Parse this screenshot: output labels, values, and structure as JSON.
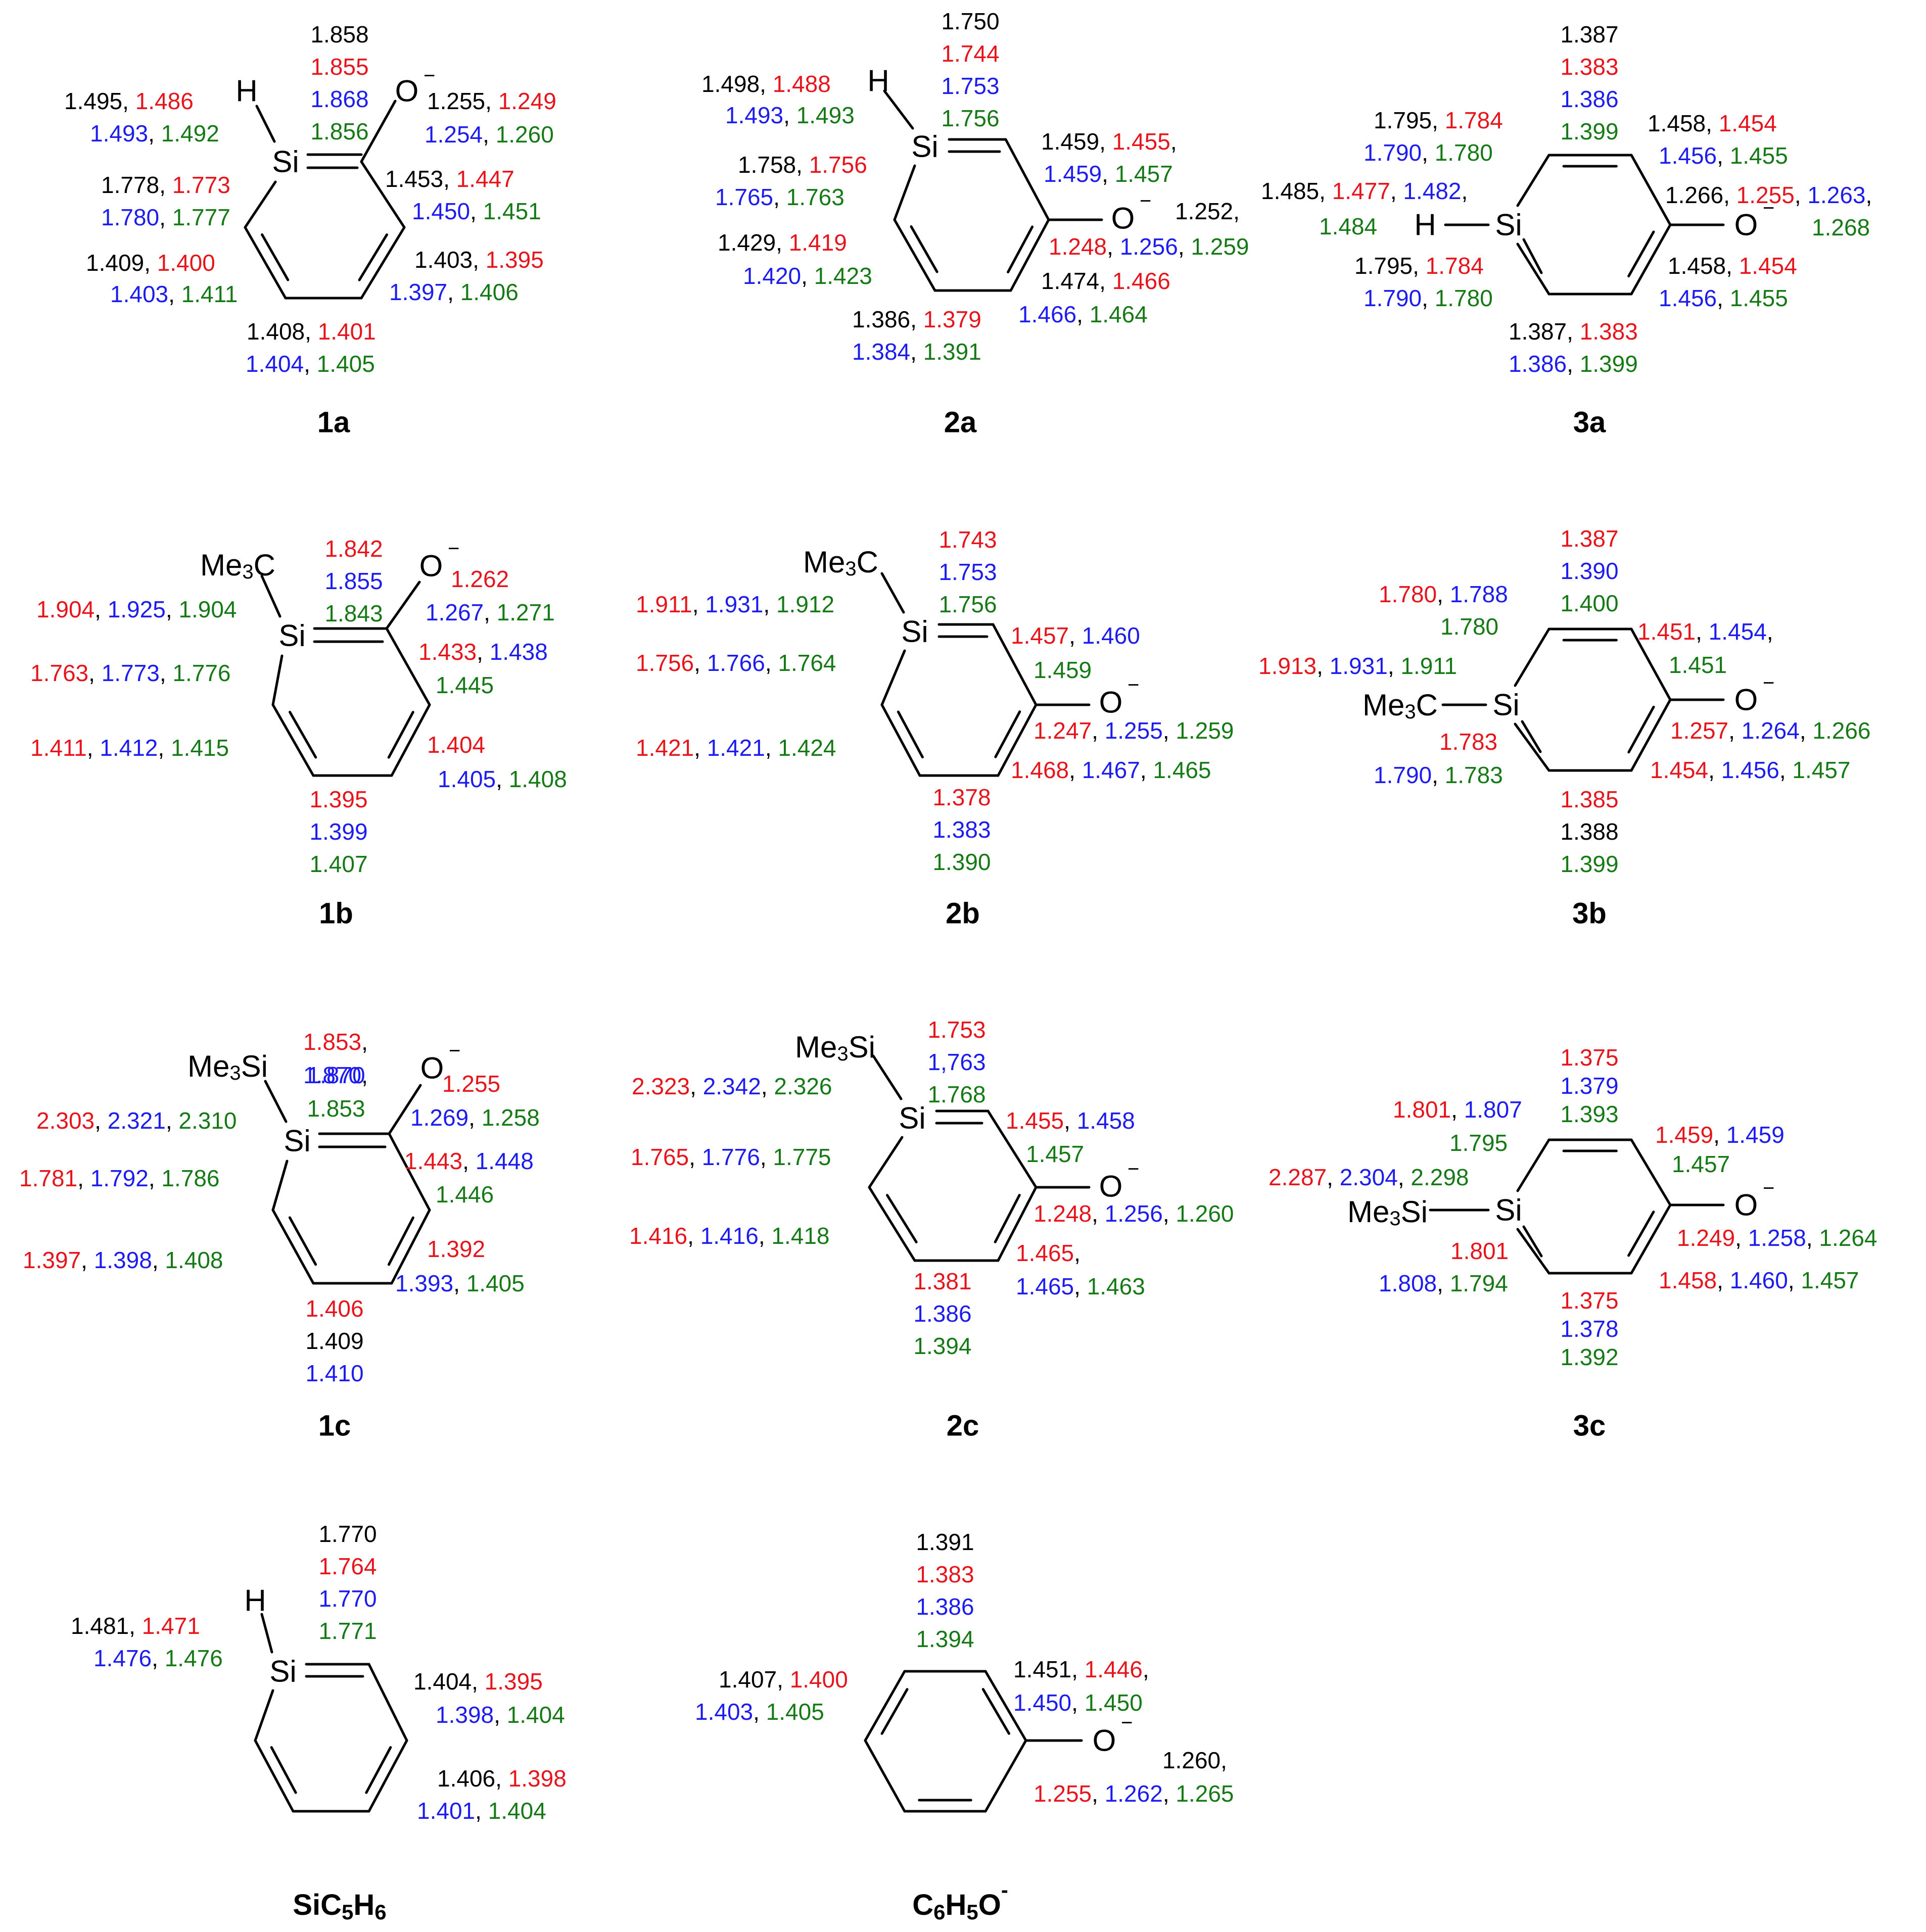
{
  "colors": {
    "black": "#000000",
    "red": "#e8141c",
    "blue": "#1c1cf0",
    "green": "#157a15"
  },
  "charge": "−",
  "structures": {
    "1a": {
      "label": "1a",
      "atoms": {
        "si": "Si",
        "h": "H",
        "o": "O"
      },
      "si_c2": [
        "1.858",
        "1.855",
        "1.868",
        "1.856"
      ],
      "si_h_line1": [
        "1.495",
        "1.486"
      ],
      "si_h_line2": [
        "1.493",
        "1.492"
      ],
      "co_line1": [
        "1.255",
        "1.249"
      ],
      "co_line2": [
        "1.254",
        "1.260"
      ],
      "si_c6_line1": [
        "1.778",
        "1.773"
      ],
      "si_c6_line2": [
        "1.780",
        "1.777"
      ],
      "c2_c3_line1": [
        "1.453",
        "1.447"
      ],
      "c2_c3_line2": [
        "1.450",
        "1.451"
      ],
      "c5_c6_line1": [
        "1.409",
        "1.400"
      ],
      "c5_c6_line2": [
        "1.403",
        "1.411"
      ],
      "c3_c4_line1": [
        "1.403",
        "1.395"
      ],
      "c3_c4_line2": [
        "1.397",
        "1.406"
      ],
      "c4_c5_line1": [
        "1.408",
        "1.401"
      ],
      "c4_c5_line2": [
        "1.404",
        "1.405"
      ]
    },
    "2a": {
      "label": "2a",
      "atoms": {
        "si": "Si",
        "h": "H",
        "o": "O"
      },
      "si_c2": [
        "1.750",
        "1.744",
        "1.753",
        "1.756"
      ],
      "si_h_line1": [
        "1.498",
        "1.488"
      ],
      "si_h_line2": [
        "1.493",
        "1.493"
      ],
      "si_c6_line1": [
        "1.758",
        "1.756"
      ],
      "si_c6_line2": [
        "1.765",
        "1.763"
      ],
      "c6_c5_line1": [
        "1.429",
        "1.419"
      ],
      "c6_c5_line2": [
        "1.420",
        "1.423"
      ],
      "c2_c3_line1": [
        "1.459",
        "1.455"
      ],
      "c2_c3_line2": [
        "1.459",
        "1.457"
      ],
      "co_line1": [
        "1.252"
      ],
      "co_line2": [
        "1.248",
        "1.256",
        "1.259"
      ],
      "c3_c4_line1": [
        "1.474",
        "1.466"
      ],
      "c3_c4_line2": [
        "1.466",
        "1.464"
      ],
      "c4_c5_line1": [
        "1.386",
        "1.379"
      ],
      "c4_c5_line2": [
        "1.384",
        "1.391"
      ]
    },
    "3a": {
      "label": "3a",
      "atoms": {
        "si": "Si",
        "h": "H",
        "o": "O"
      },
      "top_c": [
        "1.387",
        "1.383",
        "1.386",
        "1.399"
      ],
      "si_c_top_line1": [
        "1.795",
        "1.784"
      ],
      "si_c_top_line2": [
        "1.790",
        "1.780"
      ],
      "si_h_line1": [
        "1.485",
        "1.477",
        "1.482"
      ],
      "si_h_line2": [
        "1.484"
      ],
      "si_c_bot_line1": [
        "1.795",
        "1.784"
      ],
      "si_c_bot_line2": [
        "1.790",
        "1.780"
      ],
      "c_top_right_line1": [
        "1.458",
        "1.454"
      ],
      "c_top_right_line2": [
        "1.456",
        "1.455"
      ],
      "co_line1": [
        "1.266",
        "1.255",
        "1.263"
      ],
      "co_line2": [
        "1.268"
      ],
      "c_bot_right_line1": [
        "1.458",
        "1.454"
      ],
      "c_bot_right_line2": [
        "1.456",
        "1.455"
      ],
      "bot_c_line1": [
        "1.387",
        "1.383"
      ],
      "bot_c_line2": [
        "1.386",
        "1.399"
      ]
    },
    "1b": {
      "label": "1b",
      "atoms": {
        "si": "Si",
        "o": "O",
        "sub": "Me",
        "sub_tail": "C",
        "sub_index": "3"
      },
      "si_c2": [
        "1.842",
        "1.855",
        "1.843"
      ],
      "co_line1": [
        "1.262"
      ],
      "co_line2": [
        "1.267",
        "1.271"
      ],
      "si_sub": [
        "1.904",
        "1.925",
        "1.904"
      ],
      "c2_c3_line1": [
        "1.433",
        "1.438"
      ],
      "c2_c3_line2": [
        "1.445"
      ],
      "si_c6": [
        "1.763",
        "1.773",
        "1.776"
      ],
      "c5_c6": [
        "1.411",
        "1.412",
        "1.415"
      ],
      "c3_c4_line1": [
        "1.404"
      ],
      "c3_c4_line2": [
        "1.405",
        "1.408"
      ],
      "c4_c5": [
        "1.395",
        "1.399",
        "1.407"
      ]
    },
    "2b": {
      "label": "2b",
      "atoms": {
        "si": "Si",
        "o": "O",
        "sub": "Me",
        "sub_tail": "C",
        "sub_index": "3"
      },
      "si_c2": [
        "1.743",
        "1.753",
        "1.756"
      ],
      "si_sub": [
        "1.911",
        "1.931",
        "1.912"
      ],
      "si_c6": [
        "1.756",
        "1.766",
        "1.764"
      ],
      "c6_c5": [
        "1.421",
        "1.421",
        "1.424"
      ],
      "c2_c3_line1": [
        "1.457",
        "1.460"
      ],
      "c2_c3_line2": [
        "1.459"
      ],
      "co": [
        "1.247",
        "1.255",
        "1.259"
      ],
      "c3_c4": [
        "1.468",
        "1.467",
        "1.465"
      ],
      "c4_c5": [
        "1.378",
        "1.383",
        "1.390"
      ]
    },
    "3b": {
      "label": "3b",
      "atoms": {
        "si": "Si",
        "o": "O",
        "sub": "Me",
        "sub_tail": "C",
        "sub_index": "3"
      },
      "top_c": [
        "1.387",
        "1.390",
        "1.400"
      ],
      "si_c_top_line1": [
        "1.780",
        "1.788"
      ],
      "si_c_top_line2": [
        "1.780"
      ],
      "si_sub": [
        "1.913",
        "1.931",
        "1.911"
      ],
      "si_c_bot_line1": [
        "1.783"
      ],
      "si_c_bot_line2": [
        "1.790",
        "1.783"
      ],
      "c_top_right_line1": [
        "1.451",
        "1.454"
      ],
      "c_top_right_line2": [
        "1.451"
      ],
      "co": [
        "1.257",
        "1.264",
        "1.266"
      ],
      "c_bot_right": [
        "1.454",
        "1.456",
        "1.457"
      ],
      "bot_c": [
        "1.385",
        "1.388",
        "1.399"
      ]
    },
    "1c": {
      "label": "1c",
      "atoms": {
        "si": "Si",
        "o": "O",
        "sub": "Me",
        "sub_tail": "Si",
        "sub_index": "3"
      },
      "si_c2": [
        "1.853",
        "1.870",
        "1.853"
      ],
      "co_line1": [
        "1.255"
      ],
      "co_line2": [
        "1.269",
        "1.258"
      ],
      "si_sub": [
        "2.303",
        "2.321",
        "2.310"
      ],
      "c2_c3_line1": [
        "1.443",
        "1.448"
      ],
      "c2_c3_line2": [
        "1.446"
      ],
      "si_c6": [
        "1.781",
        "1.792",
        "1.786"
      ],
      "c5_c6": [
        "1.397",
        "1.398",
        "1.408"
      ],
      "c3_c4_line1": [
        "1.392"
      ],
      "c3_c4_line2": [
        "1.393",
        "1.405"
      ],
      "c4_c5": [
        "1.406",
        "1.409",
        "1.410"
      ]
    },
    "2c": {
      "label": "2c",
      "atoms": {
        "si": "Si",
        "o": "O",
        "sub": "Me",
        "sub_tail": "Si",
        "sub_index": "3"
      },
      "si_c2": [
        "1.753",
        "1,763",
        "1.768"
      ],
      "si_sub": [
        "2.323",
        "2.342",
        "2.326"
      ],
      "si_c6": [
        "1.765",
        "1.776",
        "1.775"
      ],
      "c6_c5": [
        "1.416",
        "1.416",
        "1.418"
      ],
      "c2_c3_line1": [
        "1.455",
        "1.458"
      ],
      "c2_c3_line2": [
        "1.457"
      ],
      "co": [
        "1.248",
        "1.256",
        "1.260"
      ],
      "c3_c4_line1": [
        "1.465"
      ],
      "c3_c4_line2": [
        "1.465",
        "1.463"
      ],
      "c4_c5": [
        "1.381",
        "1.386",
        "1.394"
      ]
    },
    "3c": {
      "label": "3c",
      "atoms": {
        "si": "Si",
        "o": "O",
        "sub": "Me",
        "sub_tail": "Si",
        "sub_index": "3"
      },
      "top_c": [
        "1.375",
        "1.379",
        "1.393"
      ],
      "si_c_top_line1": [
        "1.801",
        "1.807"
      ],
      "si_c_top_line2": [
        "1.795"
      ],
      "si_sub": [
        "2.287",
        "2.304",
        "2.298"
      ],
      "si_c_bot_line1": [
        "1.801"
      ],
      "si_c_bot_line2": [
        "1.808",
        "1.794"
      ],
      "c_top_right_line1": [
        "1.459",
        "1.459"
      ],
      "c_top_right_line2": [
        "1.457"
      ],
      "co": [
        "1.249",
        "1.258",
        "1.264"
      ],
      "c_bot_right": [
        "1.458",
        "1.460",
        "1.457"
      ],
      "bot_c": [
        "1.375",
        "1.378",
        "1.392"
      ]
    },
    "sic5h6": {
      "label_parts": [
        "SiC",
        "5",
        "H",
        "6"
      ],
      "atoms": {
        "si": "Si",
        "h": "H"
      },
      "si_c2": [
        "1.770",
        "1.764",
        "1.770",
        "1.771"
      ],
      "si_h_line1": [
        "1.481",
        "1.471"
      ],
      "si_h_line2": [
        "1.476",
        "1.476"
      ],
      "c2_c3_line1": [
        "1.404",
        "1.395"
      ],
      "c2_c3_line2": [
        "1.398",
        "1.404"
      ],
      "c3_c4_line1": [
        "1.406",
        "1.398"
      ],
      "c3_c4_line2": [
        "1.401",
        "1.404"
      ]
    },
    "phenoxide": {
      "label_parts": [
        "C",
        "6",
        "H",
        "5",
        "O",
        "-"
      ],
      "atoms": {
        "o": "O"
      },
      "top_c": [
        "1.391",
        "1.383",
        "1.386",
        "1.394"
      ],
      "c_top_left_line1": [
        "1.407",
        "1.400"
      ],
      "c_top_left_line2": [
        "1.403",
        "1.405"
      ],
      "c_top_right_line1": [
        "1.451",
        "1.446"
      ],
      "c_top_right_line2": [
        "1.450",
        "1.450"
      ],
      "co_line1": [
        "1.260"
      ],
      "co_line2": [
        "1.255",
        "1.262",
        "1.265"
      ]
    }
  }
}
